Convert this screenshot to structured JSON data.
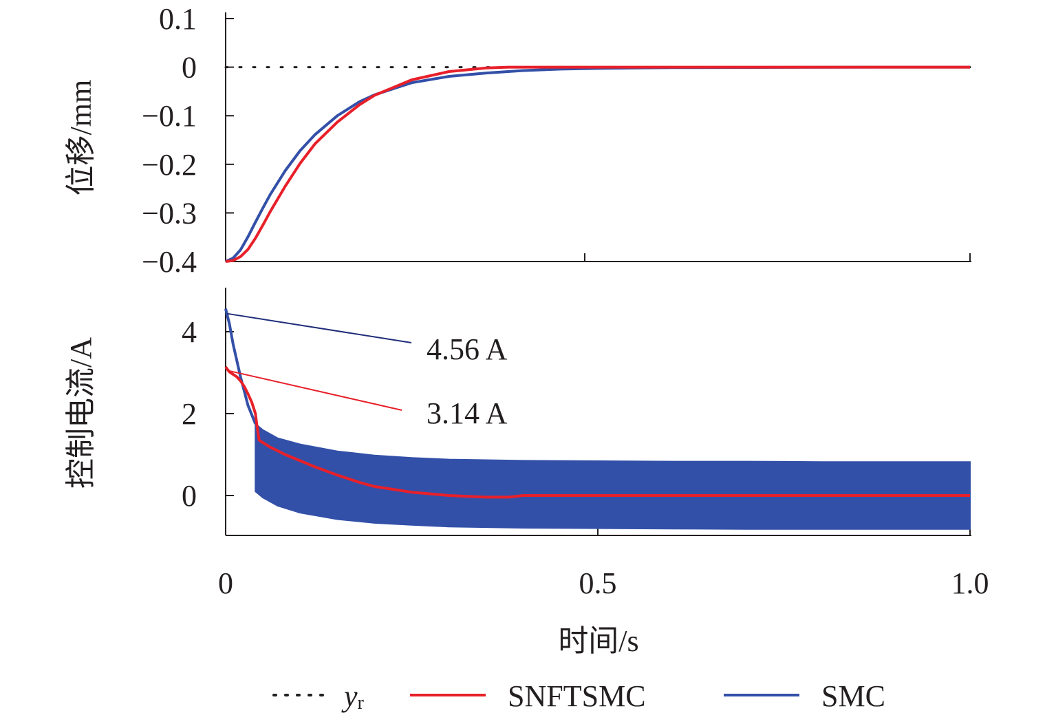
{
  "colors": {
    "snftsmc": "#e8202a",
    "smc": "#3350a8",
    "reference": "#231f20",
    "axis": "#231f20",
    "annotation_456": "#1f2d7a",
    "annotation_314": "#e8202a"
  },
  "chart_data": [
    {
      "type": "line",
      "panel": "top",
      "ylabel": "位移/mm",
      "xlim": [
        0,
        1.0
      ],
      "ylim": [
        -0.4,
        0.1
      ],
      "yticks": [
        0.1,
        0,
        -0.1,
        -0.2,
        -0.3,
        -0.4
      ],
      "ytick_labels": [
        "0.1",
        "0",
        "−0.1",
        "−0.2",
        "−0.3",
        "−0.4"
      ],
      "series": [
        {
          "name": "y",
          "style": "dotted",
          "x": [
            0,
            0.1,
            0.2,
            0.3,
            0.4,
            0.5,
            0.6,
            0.7,
            0.8,
            0.9,
            1.0
          ],
          "y": [
            0,
            0,
            0,
            0,
            0,
            0,
            0,
            0,
            0,
            0,
            0
          ]
        },
        {
          "name": "SNFTSMC",
          "x": [
            0,
            0.01,
            0.02,
            0.03,
            0.04,
            0.05,
            0.06,
            0.08,
            0.1,
            0.12,
            0.15,
            0.18,
            0.2,
            0.25,
            0.3,
            0.35,
            0.38,
            0.4,
            0.45,
            0.5,
            0.6,
            0.7,
            0.8,
            0.9,
            1.0
          ],
          "y": [
            -0.4,
            -0.398,
            -0.39,
            -0.375,
            -0.352,
            -0.325,
            -0.297,
            -0.245,
            -0.198,
            -0.158,
            -0.113,
            -0.077,
            -0.058,
            -0.026,
            -0.009,
            -0.0015,
            0.0,
            0.0,
            0.0,
            0.0,
            0.0,
            0.0,
            0.0,
            0.0,
            0.0
          ]
        },
        {
          "name": "SMC",
          "x": [
            0,
            0.01,
            0.02,
            0.03,
            0.04,
            0.05,
            0.06,
            0.08,
            0.1,
            0.12,
            0.15,
            0.18,
            0.2,
            0.25,
            0.3,
            0.35,
            0.4,
            0.45,
            0.5,
            0.55,
            0.6,
            0.7,
            0.8,
            0.9,
            1.0
          ],
          "y": [
            -0.4,
            -0.393,
            -0.376,
            -0.349,
            -0.319,
            -0.29,
            -0.262,
            -0.213,
            -0.172,
            -0.139,
            -0.1,
            -0.071,
            -0.057,
            -0.032,
            -0.019,
            -0.012,
            -0.007,
            -0.004,
            -0.0025,
            -0.0015,
            -0.001,
            -0.0005,
            -0.0002,
            0.0,
            0.0
          ]
        }
      ]
    },
    {
      "type": "line",
      "panel": "bottom",
      "xlabel": "时间/s",
      "ylabel": "控制电流/A",
      "xlim": [
        0,
        1.0
      ],
      "ylim": [
        -1.0,
        5.0
      ],
      "xticks": [
        0,
        0.5,
        1.0
      ],
      "xtick_labels": [
        "0",
        "0.5",
        "1.0"
      ],
      "yticks": [
        4,
        2,
        0
      ],
      "ytick_labels": [
        "4",
        "2",
        "0"
      ],
      "series": [
        {
          "name": "SMC",
          "x": [
            0,
            0.005,
            0.01,
            0.02,
            0.03,
            0.04
          ],
          "y": [
            4.56,
            4.2,
            3.7,
            2.9,
            2.2,
            1.75
          ],
          "band": {
            "x": [
              0.04,
              0.05,
              0.07,
              0.1,
              0.15,
              0.2,
              0.25,
              0.3,
              0.4,
              0.5,
              0.6,
              0.7,
              0.8,
              0.9,
              1.0
            ],
            "upper": [
              1.75,
              1.6,
              1.4,
              1.25,
              1.08,
              0.98,
              0.92,
              0.88,
              0.85,
              0.84,
              0.83,
              0.83,
              0.82,
              0.82,
              0.82
            ],
            "lower": [
              0.1,
              -0.05,
              -0.25,
              -0.42,
              -0.58,
              -0.67,
              -0.72,
              -0.76,
              -0.79,
              -0.8,
              -0.81,
              -0.82,
              -0.82,
              -0.82,
              -0.82
            ]
          }
        },
        {
          "name": "SNFTSMC",
          "x": [
            0,
            0.005,
            0.01,
            0.015,
            0.02,
            0.025,
            0.03,
            0.035,
            0.04,
            0.042,
            0.045,
            0.06,
            0.08,
            0.1,
            0.12,
            0.15,
            0.18,
            0.2,
            0.25,
            0.3,
            0.35,
            0.38,
            0.4,
            0.5,
            0.6,
            0.7,
            0.8,
            0.9,
            1.0
          ],
          "y": [
            3.14,
            3.02,
            2.96,
            2.9,
            2.8,
            2.66,
            2.48,
            2.28,
            2.0,
            1.72,
            1.35,
            1.18,
            1.0,
            0.85,
            0.7,
            0.5,
            0.32,
            0.22,
            0.08,
            0.0,
            -0.04,
            -0.04,
            0.0,
            0.0,
            0.0,
            0.0,
            0.0,
            0.0,
            0.0
          ]
        }
      ],
      "annotations": [
        {
          "text": "4.56 A",
          "value": 4.56,
          "series": "SMC"
        },
        {
          "text": "3.14 A",
          "value": 3.14,
          "series": "SNFTSMC"
        }
      ]
    }
  ],
  "legend": {
    "placement": "bottom",
    "items": [
      {
        "label": "y",
        "subscript": "r",
        "style": "dotted"
      },
      {
        "label": "SNFTSMC",
        "style": "solid"
      },
      {
        "label": "SMC",
        "style": "solid"
      }
    ]
  }
}
